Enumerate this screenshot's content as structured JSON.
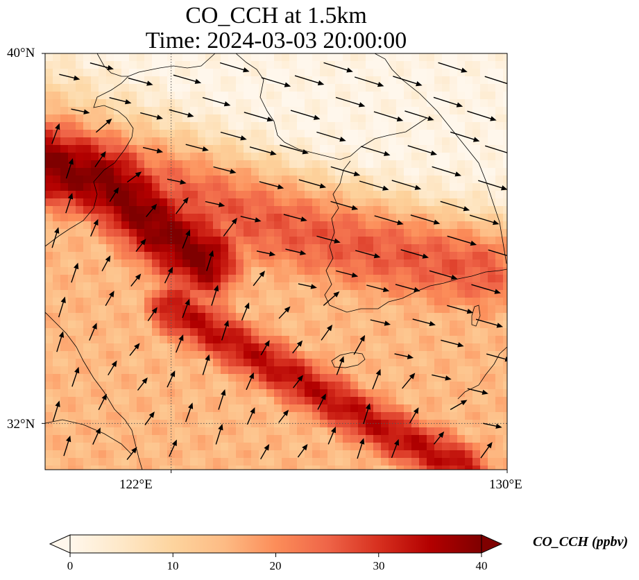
{
  "title": {
    "line1": "CO_CCH at 1.5km",
    "line2": "Time: 2024-03-03 20:00:00"
  },
  "map": {
    "extent": {
      "lon_min": 119,
      "lon_max": 130,
      "lat_min": 31,
      "lat_max": 40
    },
    "lat_labels": [
      {
        "value": 40,
        "text": "40°N"
      },
      {
        "value": 32,
        "text": "32°N"
      }
    ],
    "lon_labels": [
      {
        "value": 122,
        "text": "122°E"
      },
      {
        "value": 130,
        "text": "130°E"
      }
    ],
    "gridlines": {
      "lon": [
        122
      ],
      "lat": [
        32
      ],
      "style": "dotted"
    },
    "plumes": [
      {
        "name": "northern band",
        "lon": [
          119.0,
          124.0,
          126.5,
          129.5
        ],
        "lat": [
          37.8,
          36.4,
          35.8,
          35.3
        ],
        "width_deg": 1.6,
        "peak_ppbv": 26
      },
      {
        "name": "core",
        "lon": [
          119.0,
          120.5,
          121.7,
          122.8
        ],
        "lat": [
          37.6,
          37.2,
          36.2,
          35.5
        ],
        "width_deg": 1.3,
        "peak_ppbv": 40
      },
      {
        "name": "southern band",
        "lon": [
          122.0,
          124.5,
          127.0,
          129.0
        ],
        "lat": [
          34.5,
          33.2,
          31.9,
          31.0
        ],
        "width_deg": 0.9,
        "peak_ppbv": 34
      }
    ],
    "background_ppbv": 15,
    "clean_region": "north-east and Korean peninsula",
    "wind_field": "westerly to north-westerly, stronger over the north-east"
  },
  "colorbar": {
    "label": "CO_CCH (ppbv)",
    "min": 0,
    "max": 40,
    "extend": "both",
    "ticks": [
      {
        "value": 0,
        "text": "0"
      },
      {
        "value": 10,
        "text": "10"
      },
      {
        "value": 20,
        "text": "20"
      },
      {
        "value": 30,
        "text": "30"
      },
      {
        "value": 40,
        "text": "40"
      }
    ],
    "colormap": "OrRd",
    "stops": [
      "#fff7ec",
      "#fee8c8",
      "#fdd49e",
      "#fdbb84",
      "#fc8d59",
      "#ef6548",
      "#d7301f",
      "#b30000",
      "#7f0000"
    ]
  }
}
